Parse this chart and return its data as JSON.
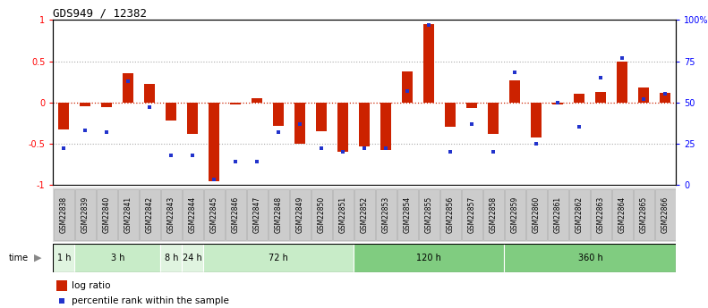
{
  "title": "GDS949 / 12382",
  "samples": [
    "GSM22838",
    "GSM22839",
    "GSM22840",
    "GSM22841",
    "GSM22842",
    "GSM22843",
    "GSM22844",
    "GSM22845",
    "GSM22846",
    "GSM22847",
    "GSM22848",
    "GSM22849",
    "GSM22850",
    "GSM22851",
    "GSM22852",
    "GSM22853",
    "GSM22854",
    "GSM22855",
    "GSM22856",
    "GSM22857",
    "GSM22858",
    "GSM22859",
    "GSM22860",
    "GSM22861",
    "GSM22862",
    "GSM22863",
    "GSM22864",
    "GSM22865",
    "GSM22866"
  ],
  "log_ratio": [
    -0.33,
    -0.05,
    -0.06,
    0.35,
    0.22,
    -0.22,
    -0.38,
    -0.96,
    -0.03,
    0.05,
    -0.28,
    -0.5,
    -0.35,
    -0.6,
    -0.53,
    -0.58,
    0.38,
    0.95,
    -0.3,
    -0.07,
    -0.38,
    0.27,
    -0.43,
    -0.03,
    0.1,
    0.13,
    0.5,
    0.18,
    0.12
  ],
  "percentile": [
    22,
    33,
    32,
    63,
    47,
    18,
    18,
    3,
    14,
    14,
    32,
    37,
    22,
    20,
    22,
    22,
    57,
    97,
    20,
    37,
    20,
    68,
    25,
    50,
    35,
    65,
    77,
    52,
    55
  ],
  "time_groups": [
    {
      "label": "1 h",
      "start": 0,
      "end": 1,
      "color": "#e0f4e0"
    },
    {
      "label": "3 h",
      "start": 1,
      "end": 5,
      "color": "#c8ecc8"
    },
    {
      "label": "8 h",
      "start": 5,
      "end": 6,
      "color": "#e0f4e0"
    },
    {
      "label": "24 h",
      "start": 6,
      "end": 7,
      "color": "#e0f4e0"
    },
    {
      "label": "72 h",
      "start": 7,
      "end": 14,
      "color": "#c8ecc8"
    },
    {
      "label": "120 h",
      "start": 14,
      "end": 21,
      "color": "#80cc80"
    },
    {
      "label": "360 h",
      "start": 21,
      "end": 29,
      "color": "#80cc80"
    }
  ],
  "bar_color": "#cc2200",
  "dot_color": "#2233cc",
  "dotted_color": "#aaaaaa",
  "zero_line_color": "#cc2200",
  "ylim": [
    -1.0,
    1.0
  ],
  "y2lim": [
    0,
    100
  ],
  "yticks_left": [
    -1.0,
    -0.5,
    0.0,
    0.5,
    1.0
  ],
  "ytick_labels_left": [
    "-1",
    "-0.5",
    "0",
    "0.5",
    "1"
  ],
  "yticks_right": [
    0,
    25,
    50,
    75,
    100
  ],
  "ytick_labels_right": [
    "0",
    "25",
    "50",
    "75",
    "100%"
  ],
  "label_bg_color": "#cccccc",
  "label_border_color": "#aaaaaa"
}
